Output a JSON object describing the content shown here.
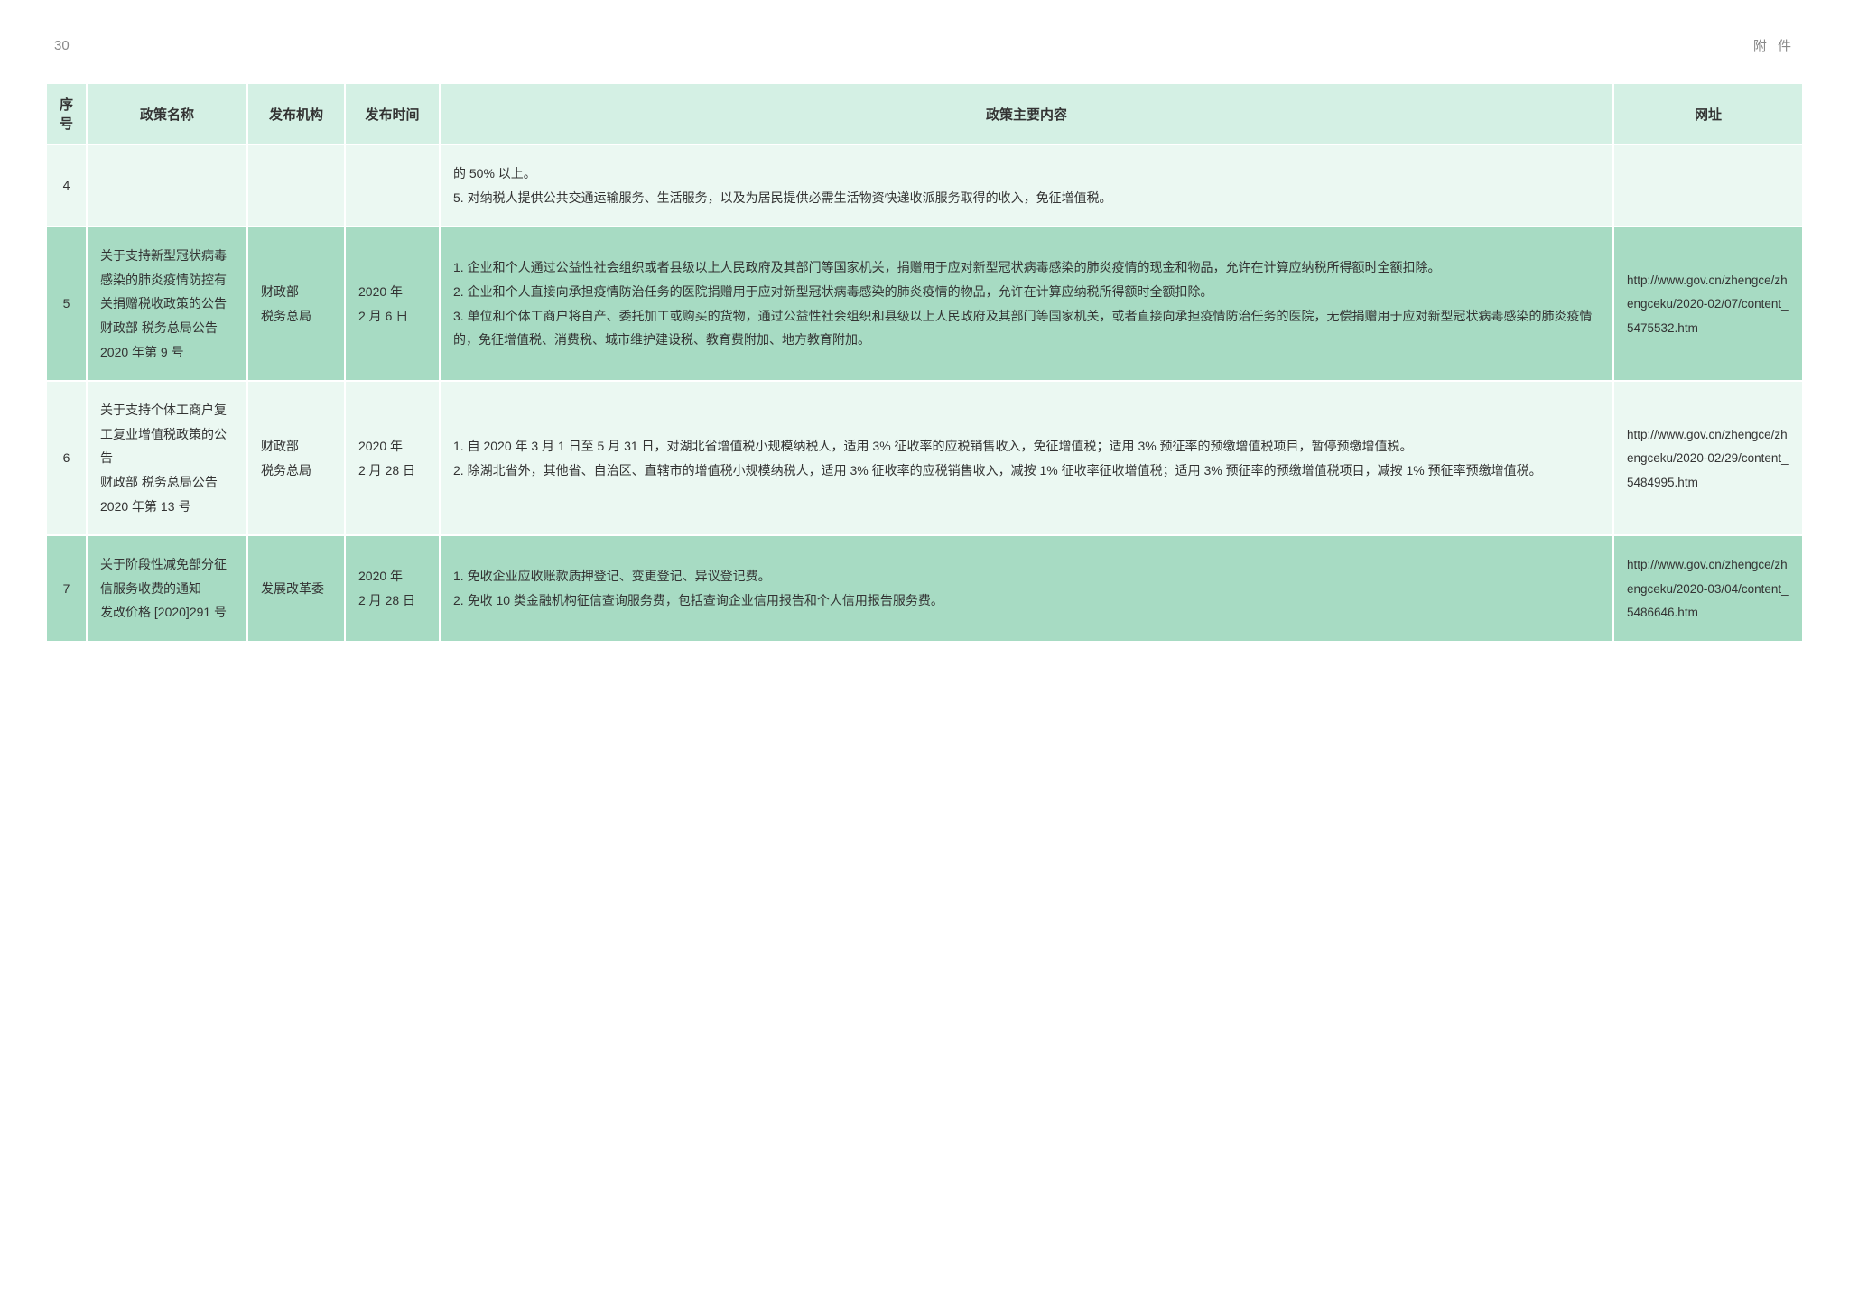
{
  "page": {
    "number": "30",
    "label": "附 件"
  },
  "table": {
    "headers": {
      "seq": "序号",
      "name": "政策名称",
      "org": "发布机构",
      "date": "发布时间",
      "content": "政策主要内容",
      "url": "网址"
    },
    "rows": [
      {
        "seq": "4",
        "name": "",
        "org": "",
        "date": "",
        "content": "的 50% 以上。\n5. 对纳税人提供公共交通运输服务、生活服务，以及为居民提供必需生活物资快递收派服务取得的收入，免征增值税。",
        "url": "",
        "rowClass": "odd"
      },
      {
        "seq": "5",
        "name": "关于支持新型冠状病毒感染的肺炎疫情防控有关捐赠税收政策的公告\n财政部 税务总局公告 2020 年第 9 号",
        "org": "财政部\n税务总局",
        "date": "2020 年\n2 月 6 日",
        "content": "1. 企业和个人通过公益性社会组织或者县级以上人民政府及其部门等国家机关，捐赠用于应对新型冠状病毒感染的肺炎疫情的现金和物品，允许在计算应纳税所得额时全额扣除。\n2. 企业和个人直接向承担疫情防治任务的医院捐赠用于应对新型冠状病毒感染的肺炎疫情的物品，允许在计算应纳税所得额时全额扣除。\n3. 单位和个体工商户将自产、委托加工或购买的货物，通过公益性社会组织和县级以上人民政府及其部门等国家机关，或者直接向承担疫情防治任务的医院，无偿捐赠用于应对新型冠状病毒感染的肺炎疫情的，免征增值税、消费税、城市维护建设税、教育费附加、地方教育附加。",
        "url": "http://www.gov.cn/zhengce/zhengceku/2020-02/07/content_5475532.htm",
        "rowClass": "even"
      },
      {
        "seq": "6",
        "name": "关于支持个体工商户复工复业增值税政策的公告\n财政部 税务总局公告 2020 年第 13 号",
        "org": "财政部\n税务总局",
        "date": "2020 年\n2 月 28 日",
        "content": "1. 自 2020 年 3 月 1 日至 5 月 31 日，对湖北省增值税小规模纳税人，适用 3% 征收率的应税销售收入，免征增值税；适用 3% 预征率的预缴增值税项目，暂停预缴增值税。\n2. 除湖北省外，其他省、自治区、直辖市的增值税小规模纳税人，适用 3% 征收率的应税销售收入，减按 1% 征收率征收增值税；适用 3% 预征率的预缴增值税项目，减按 1% 预征率预缴增值税。",
        "url": "http://www.gov.cn/zhengce/zhengceku/2020-02/29/content_5484995.htm",
        "rowClass": "odd"
      },
      {
        "seq": "7",
        "name": "关于阶段性减免部分征信服务收费的通知\n发改价格 [2020]291 号",
        "org": "发展改革委",
        "date": "2020 年\n2 月 28 日",
        "content": "1. 免收企业应收账款质押登记、变更登记、异议登记费。\n2. 免收 10 类金融机构征信查询服务费，包括查询企业信用报告和个人信用报告服务费。",
        "url": "http://www.gov.cn/zhengce/zhengceku/2020-03/04/content_5486646.htm",
        "rowClass": "even"
      }
    ]
  },
  "styles": {
    "header_bg": "#d4f0e4",
    "odd_row_bg": "#ebf8f2",
    "even_row_bg": "#a7dbc3",
    "border_color": "#ffffff",
    "text_color": "#333333",
    "page_label_color": "#888888"
  }
}
